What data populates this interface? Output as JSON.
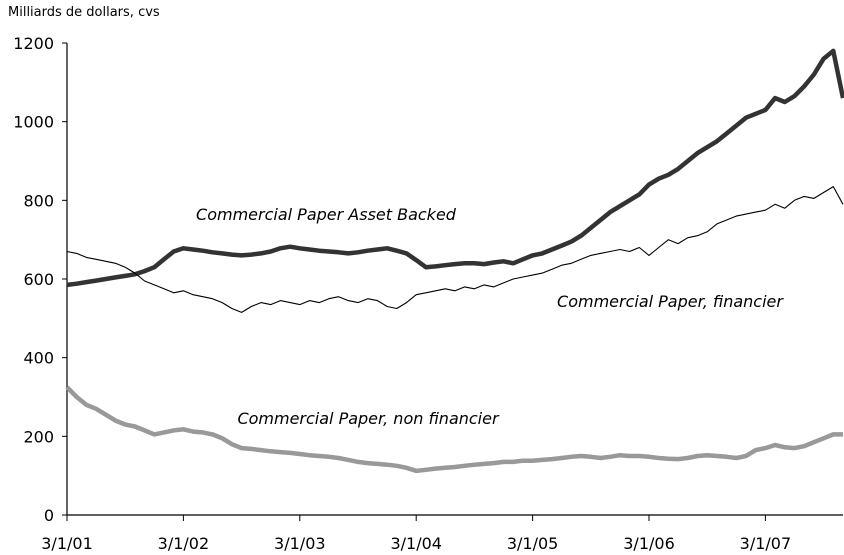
{
  "chart_data": {
    "type": "line",
    "y_label": "Milliards de dollars, cvs",
    "categories": [
      "3/1/01",
      null,
      null,
      null,
      null,
      null,
      null,
      null,
      null,
      null,
      null,
      null,
      "3/1/02",
      null,
      null,
      null,
      null,
      null,
      null,
      null,
      null,
      null,
      null,
      null,
      "3/1/03",
      null,
      null,
      null,
      null,
      null,
      null,
      null,
      null,
      null,
      null,
      null,
      "3/1/04",
      null,
      null,
      null,
      null,
      null,
      null,
      null,
      null,
      null,
      null,
      null,
      "3/1/05",
      null,
      null,
      null,
      null,
      null,
      null,
      null,
      null,
      null,
      null,
      null,
      "3/1/06",
      null,
      null,
      null,
      null,
      null,
      null,
      null,
      null,
      null,
      null,
      null,
      "3/1/07",
      null,
      null,
      null,
      null,
      null,
      null,
      null,
      null
    ],
    "series": [
      {
        "name": "Commercial Paper Asset Backed",
        "color": "#333333",
        "values": [
          585,
          588,
          592,
          596,
          600,
          604,
          608,
          612,
          620,
          630,
          650,
          670,
          678,
          675,
          672,
          668,
          665,
          662,
          660,
          662,
          665,
          670,
          678,
          682,
          678,
          675,
          672,
          670,
          668,
          665,
          668,
          672,
          675,
          678,
          672,
          665,
          648,
          630,
          632,
          635,
          638,
          640,
          640,
          638,
          642,
          645,
          640,
          650,
          660,
          665,
          675,
          685,
          695,
          710,
          730,
          750,
          770,
          785,
          800,
          815,
          840,
          855,
          865,
          880,
          900,
          920,
          935,
          950,
          970,
          990,
          1010,
          1020,
          1030,
          1060,
          1050,
          1065,
          1090,
          1120,
          1160,
          1180,
          1060
        ]
      },
      {
        "name": "Commercial Paper, financier",
        "color": "#000000",
        "values": [
          670,
          665,
          655,
          650,
          645,
          640,
          630,
          615,
          595,
          585,
          575,
          565,
          570,
          560,
          555,
          550,
          540,
          525,
          515,
          530,
          540,
          535,
          545,
          540,
          535,
          545,
          540,
          550,
          555,
          545,
          540,
          550,
          545,
          530,
          525,
          540,
          560,
          565,
          570,
          575,
          570,
          580,
          575,
          585,
          580,
          590,
          600,
          605,
          610,
          615,
          625,
          635,
          640,
          650,
          660,
          665,
          670,
          675,
          670,
          680,
          660,
          680,
          700,
          690,
          705,
          710,
          720,
          740,
          750,
          760,
          765,
          770,
          775,
          790,
          780,
          800,
          810,
          805,
          820,
          835,
          790
        ]
      },
      {
        "name": "Commercial Paper, non financier",
        "color": "#999999",
        "values": [
          325,
          300,
          280,
          270,
          255,
          240,
          230,
          225,
          215,
          205,
          210,
          215,
          218,
          212,
          210,
          205,
          195,
          180,
          170,
          168,
          165,
          162,
          160,
          158,
          155,
          152,
          150,
          148,
          145,
          140,
          135,
          132,
          130,
          128,
          125,
          120,
          112,
          115,
          118,
          120,
          122,
          125,
          128,
          130,
          132,
          135,
          135,
          138,
          138,
          140,
          142,
          145,
          148,
          150,
          148,
          145,
          148,
          152,
          150,
          150,
          148,
          145,
          143,
          142,
          145,
          150,
          152,
          150,
          148,
          145,
          150,
          165,
          170,
          178,
          172,
          170,
          175,
          185,
          195,
          205,
          205
        ]
      }
    ],
    "ylim": [
      0,
      1200
    ],
    "yticks": [
      0,
      200,
      400,
      600,
      800,
      1000,
      1200
    ],
    "grid": false
  }
}
